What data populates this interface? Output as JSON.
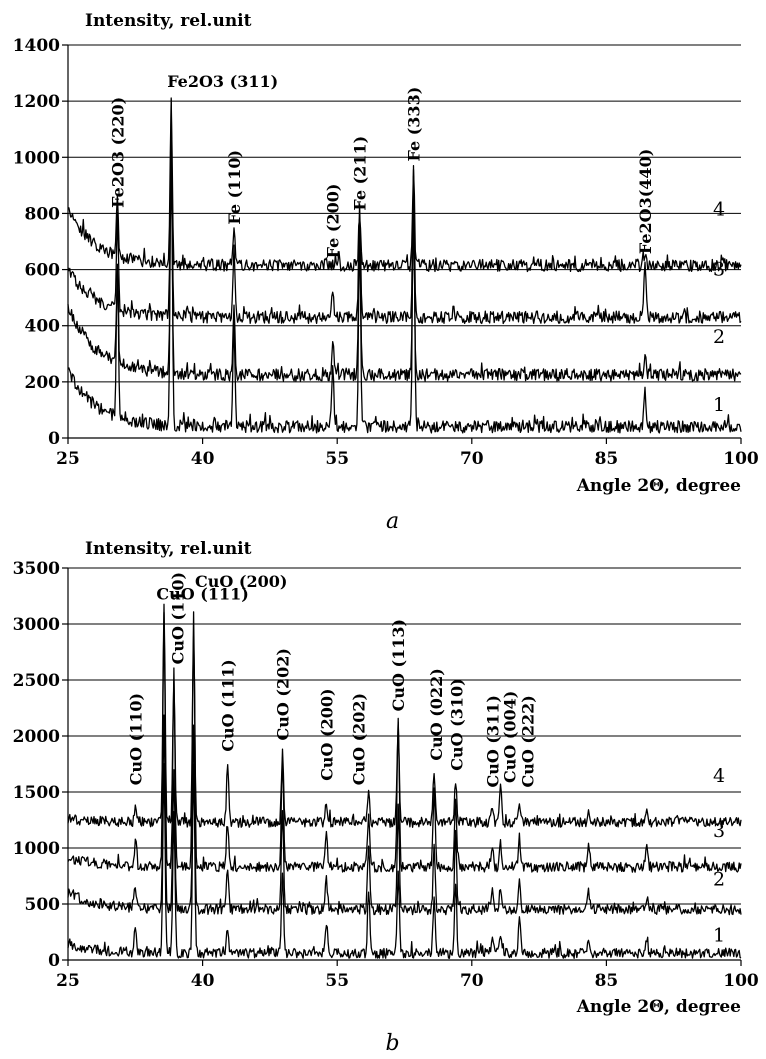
{
  "chart_data": [
    {
      "type": "line",
      "panel_label": "a",
      "title": "Intensity, rel.unit",
      "xlabel": "Angle 2Θ, degree",
      "ylabel": "",
      "xlim": [
        25,
        100
      ],
      "ylim": [
        0,
        1400
      ],
      "x_ticks": [
        25,
        40,
        55,
        70,
        85,
        100
      ],
      "y_ticks": [
        0,
        200,
        400,
        600,
        800,
        1000,
        1200,
        1400
      ],
      "grid": "horizontal",
      "series": [
        {
          "label": "1",
          "baseline": 40,
          "start": 240,
          "noise": 22,
          "peaks": [
            [
              30.5,
              540
            ],
            [
              36.5,
              1150
            ],
            [
              43.5,
              370
            ],
            [
              54.5,
              230
            ],
            [
              57.5,
              690
            ],
            [
              63.5,
              920
            ],
            [
              89.3,
              130
            ]
          ]
        },
        {
          "label": "2",
          "baseline": 225,
          "start": 470,
          "noise": 22,
          "peaks": [
            [
              30.5,
              310
            ],
            [
              36.5,
              760
            ],
            [
              43.5,
              240
            ],
            [
              54.5,
              110
            ],
            [
              57.5,
              550
            ],
            [
              63.5,
              550
            ],
            [
              89.3,
              80
            ]
          ]
        },
        {
          "label": "3",
          "baseline": 430,
          "start": 600,
          "noise": 22,
          "peaks": [
            [
              30.5,
              330
            ],
            [
              36.5,
              680
            ],
            [
              43.5,
              250
            ],
            [
              54.5,
              90
            ],
            [
              57.5,
              400
            ],
            [
              63.5,
              480
            ],
            [
              89.3,
              200
            ]
          ]
        },
        {
          "label": "4",
          "baseline": 615,
          "start": 810,
          "noise": 22,
          "peaks": [
            [
              30.5,
              200
            ],
            [
              36.5,
              580
            ],
            [
              43.5,
              130
            ],
            [
              57.5,
              180
            ],
            [
              63.5,
              340
            ],
            [
              89.3,
              50
            ]
          ]
        }
      ],
      "annotations": [
        {
          "text": "Fe2O3 (220)",
          "x": 30.5,
          "y": 820,
          "vertical": true
        },
        {
          "text": "Fe2O3 (311)",
          "x": 36.5,
          "y": 1250,
          "vertical": false
        },
        {
          "text": "Fe (110)",
          "x": 43.5,
          "y": 760,
          "vertical": true
        },
        {
          "text": "Fe (200)",
          "x": 54.5,
          "y": 640,
          "vertical": true
        },
        {
          "text": "Fe (211)",
          "x": 57.5,
          "y": 810,
          "vertical": true
        },
        {
          "text": "Fe (333)",
          "x": 63.5,
          "y": 985,
          "vertical": true
        },
        {
          "text": "Fe2O3(440)",
          "x": 89.3,
          "y": 655,
          "vertical": true
        }
      ]
    },
    {
      "type": "line",
      "panel_label": "b",
      "title": "Intensity, rel.unit",
      "xlabel": "Angle 2Θ, degree",
      "ylabel": "",
      "xlim": [
        25,
        100
      ],
      "ylim": [
        0,
        3500
      ],
      "x_ticks": [
        25,
        40,
        55,
        70,
        85,
        100
      ],
      "y_ticks": [
        0,
        500,
        1000,
        1500,
        2000,
        2500,
        3000,
        3500
      ],
      "grid": "horizontal",
      "series": [
        {
          "label": "1",
          "baseline": 60,
          "start": 150,
          "noise": 45,
          "peaks": [
            [
              32.5,
              200
            ],
            [
              35.7,
              1700
            ],
            [
              36.8,
              1250
            ],
            [
              39.0,
              1650
            ],
            [
              42.8,
              230
            ],
            [
              48.9,
              700
            ],
            [
              53.8,
              270
            ],
            [
              58.5,
              540
            ],
            [
              61.8,
              720
            ],
            [
              65.8,
              470
            ],
            [
              68.2,
              640
            ],
            [
              72.3,
              160
            ],
            [
              73.2,
              140
            ],
            [
              75.3,
              330
            ],
            [
              83.0,
              140
            ],
            [
              89.5,
              140
            ]
          ]
        },
        {
          "label": "2",
          "baseline": 450,
          "start": 600,
          "noise": 45,
          "peaks": [
            [
              32.5,
              200
            ],
            [
              35.7,
              1700
            ],
            [
              36.8,
              1250
            ],
            [
              39.0,
              1650
            ],
            [
              42.8,
              380
            ],
            [
              48.9,
              900
            ],
            [
              53.8,
              280
            ],
            [
              58.5,
              560
            ],
            [
              61.8,
              900
            ],
            [
              65.8,
              560
            ],
            [
              68.2,
              680
            ],
            [
              72.3,
              220
            ],
            [
              73.2,
              220
            ],
            [
              75.3,
              300
            ],
            [
              83.0,
              180
            ],
            [
              89.5,
              120
            ]
          ]
        },
        {
          "label": "3",
          "baseline": 830,
          "start": 920,
          "noise": 45,
          "peaks": [
            [
              32.5,
              200
            ],
            [
              35.7,
              2250
            ],
            [
              36.8,
              1700
            ],
            [
              39.0,
              2250
            ],
            [
              42.8,
              400
            ],
            [
              48.9,
              1000
            ],
            [
              53.8,
              300
            ],
            [
              58.5,
              480
            ],
            [
              61.8,
              1300
            ],
            [
              65.8,
              700
            ],
            [
              68.2,
              620
            ],
            [
              72.3,
              200
            ],
            [
              73.2,
              220
            ],
            [
              75.3,
              260
            ],
            [
              83.0,
              200
            ],
            [
              89.5,
              160
            ]
          ]
        },
        {
          "label": "4",
          "baseline": 1230,
          "start": 1260,
          "noise": 45,
          "peaks": [
            [
              32.5,
              120
            ],
            [
              35.7,
              1900
            ],
            [
              36.8,
              1250
            ],
            [
              39.0,
              1700
            ],
            [
              42.8,
              550
            ],
            [
              48.9,
              620
            ],
            [
              53.8,
              180
            ],
            [
              58.5,
              260
            ],
            [
              61.8,
              880
            ],
            [
              65.8,
              460
            ],
            [
              68.2,
              380
            ],
            [
              72.3,
              120
            ],
            [
              73.2,
              330
            ],
            [
              75.3,
              140
            ],
            [
              83.0,
              120
            ],
            [
              89.5,
              80
            ]
          ]
        }
      ],
      "annotations": [
        {
          "text": "CuO (110)",
          "x": 32.5,
          "y": 1560,
          "vertical": true
        },
        {
          "text": "CuO (111)",
          "x": 35.3,
          "y": 3220,
          "vertical": false
        },
        {
          "text": "CuO (110)",
          "x": 37.2,
          "y": 2640,
          "vertical": true
        },
        {
          "text": "CuO (200)",
          "x": 39.6,
          "y": 3330,
          "vertical": false
        },
        {
          "text": "CuO (111)",
          "x": 42.8,
          "y": 1860,
          "vertical": true
        },
        {
          "text": "CuO (202)",
          "x": 48.9,
          "y": 1960,
          "vertical": true
        },
        {
          "text": "CuO (200)",
          "x": 53.8,
          "y": 1600,
          "vertical": true
        },
        {
          "text": "CuO (202)",
          "x": 57.4,
          "y": 1560,
          "vertical": true
        },
        {
          "text": "CuO (113)",
          "x": 61.8,
          "y": 2220,
          "vertical": true
        },
        {
          "text": "CuO (022)",
          "x": 66.0,
          "y": 1780,
          "vertical": true
        },
        {
          "text": "CuO (310)",
          "x": 68.3,
          "y": 1690,
          "vertical": true
        },
        {
          "text": "CuO (311)",
          "x": 72.3,
          "y": 1540,
          "vertical": true
        },
        {
          "text": "CuO (004)",
          "x": 74.2,
          "y": 1580,
          "vertical": true
        },
        {
          "text": "CuO (222)",
          "x": 76.2,
          "y": 1540,
          "vertical": true
        }
      ]
    }
  ]
}
